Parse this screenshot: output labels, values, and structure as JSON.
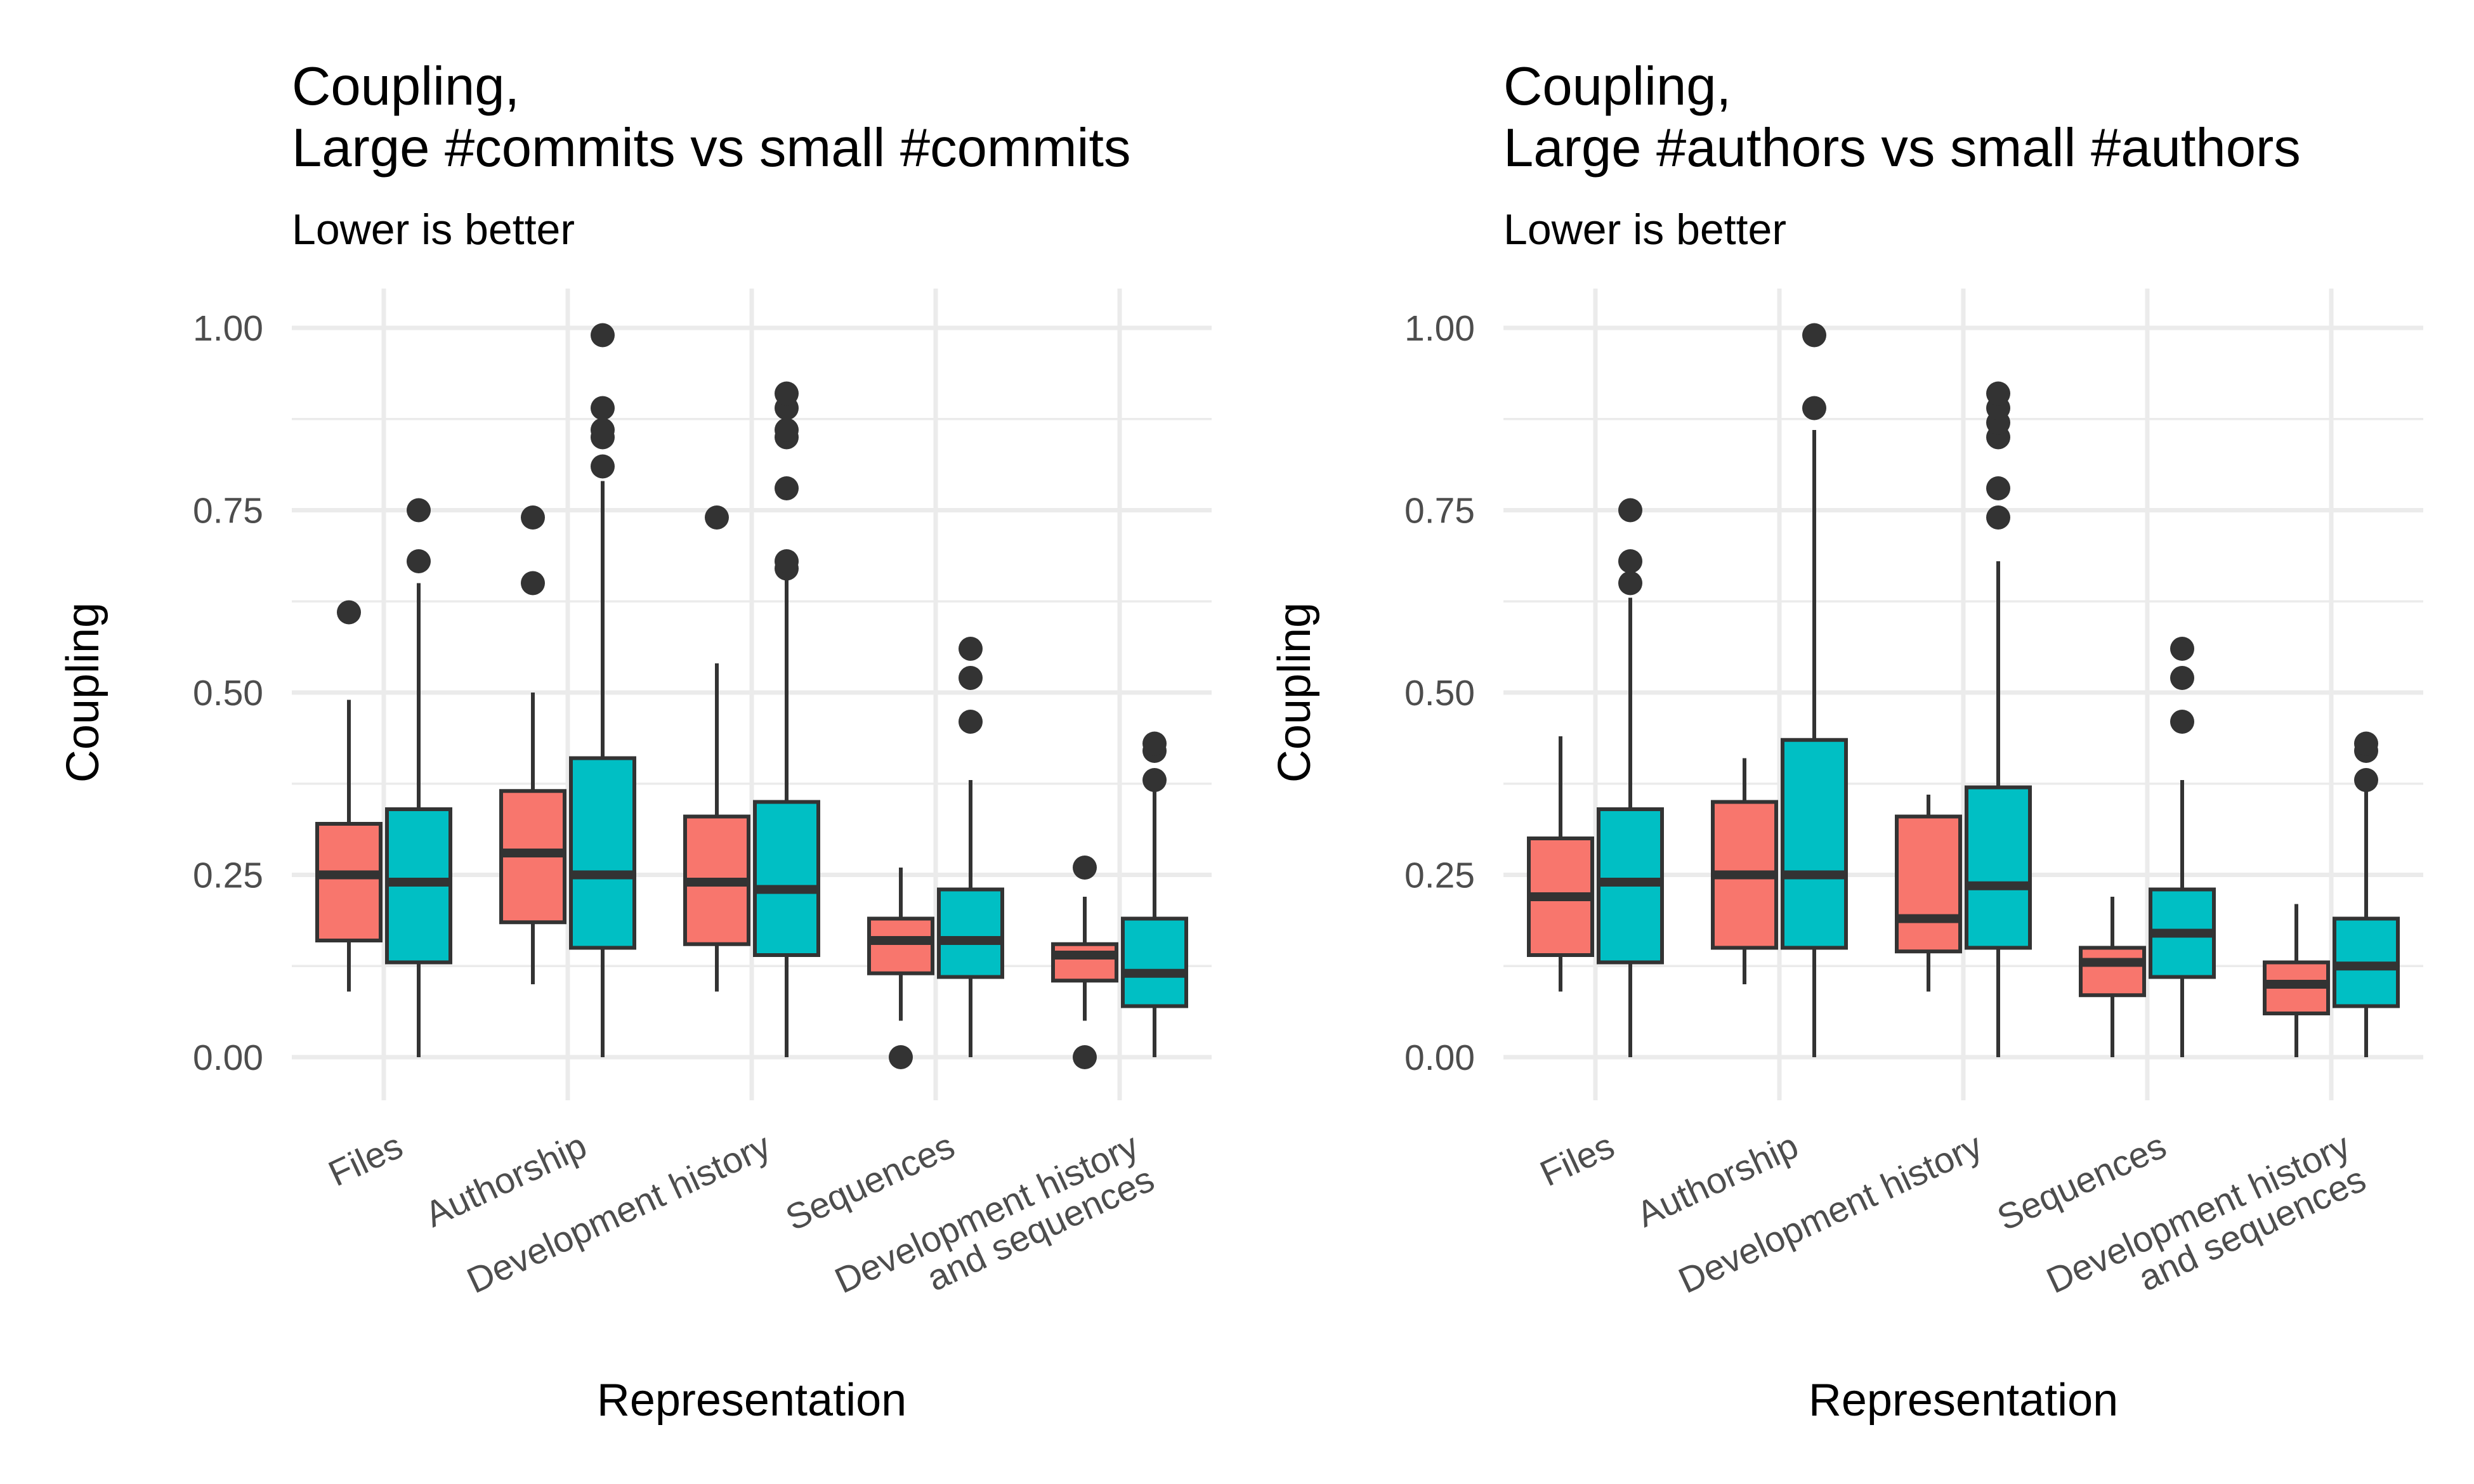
{
  "chart_data": [
    {
      "type": "boxplot",
      "title_line1": "Coupling,",
      "title_line2": "Large #commits vs small #commits",
      "subtitle": "Lower is better",
      "xlabel": "Representation",
      "ylabel": "Coupling",
      "ylim": [
        0,
        1
      ],
      "yticks": [
        "0.00",
        "0.25",
        "0.50",
        "0.75",
        "1.00"
      ],
      "categories": [
        {
          "lines": [
            "Files"
          ]
        },
        {
          "lines": [
            "Authorship"
          ]
        },
        {
          "lines": [
            "Development history"
          ]
        },
        {
          "lines": [
            "Sequences"
          ]
        },
        {
          "lines": [
            "Development history",
            "and sequences"
          ]
        }
      ],
      "series": [
        {
          "name": "large",
          "color": "#F8766D",
          "boxes": [
            {
              "wlo": 0.09,
              "q1": 0.16,
              "med": 0.25,
              "q3": 0.32,
              "whi": 0.49,
              "outliers": [
                0.61
              ]
            },
            {
              "wlo": 0.1,
              "q1": 0.185,
              "med": 0.28,
              "q3": 0.365,
              "whi": 0.5,
              "outliers": [
                0.65,
                0.74
              ]
            },
            {
              "wlo": 0.09,
              "q1": 0.155,
              "med": 0.24,
              "q3": 0.33,
              "whi": 0.54,
              "outliers": [
                0.74
              ]
            },
            {
              "wlo": 0.05,
              "q1": 0.115,
              "med": 0.16,
              "q3": 0.19,
              "whi": 0.26,
              "outliers": [
                0.0
              ]
            },
            {
              "wlo": 0.05,
              "q1": 0.105,
              "med": 0.14,
              "q3": 0.155,
              "whi": 0.22,
              "outliers": [
                0.0,
                0.26
              ]
            }
          ]
        },
        {
          "name": "small",
          "color": "#00BFC4",
          "boxes": [
            {
              "wlo": 0.0,
              "q1": 0.13,
              "med": 0.24,
              "q3": 0.34,
              "whi": 0.65,
              "outliers": [
                0.68,
                0.75
              ]
            },
            {
              "wlo": 0.0,
              "q1": 0.15,
              "med": 0.25,
              "q3": 0.41,
              "whi": 0.79,
              "outliers": [
                0.81,
                0.85,
                0.86,
                0.89,
                0.99
              ]
            },
            {
              "wlo": 0.0,
              "q1": 0.14,
              "med": 0.23,
              "q3": 0.35,
              "whi": 0.67,
              "outliers": [
                0.67,
                0.68,
                0.78,
                0.85,
                0.86,
                0.89,
                0.91
              ]
            },
            {
              "wlo": 0.0,
              "q1": 0.11,
              "med": 0.16,
              "q3": 0.23,
              "whi": 0.38,
              "outliers": [
                0.46,
                0.52,
                0.56
              ]
            },
            {
              "wlo": 0.0,
              "q1": 0.07,
              "med": 0.115,
              "q3": 0.19,
              "whi": 0.37,
              "outliers": [
                0.38,
                0.42,
                0.43
              ]
            }
          ]
        }
      ]
    },
    {
      "type": "boxplot",
      "title_line1": "Coupling,",
      "title_line2": "Large #authors vs small #authors",
      "subtitle": "Lower is better",
      "xlabel": "Representation",
      "ylabel": "Coupling",
      "ylim": [
        0,
        1
      ],
      "yticks": [
        "0.00",
        "0.25",
        "0.50",
        "0.75",
        "1.00"
      ],
      "categories": [
        {
          "lines": [
            "Files"
          ]
        },
        {
          "lines": [
            "Authorship"
          ]
        },
        {
          "lines": [
            "Development history"
          ]
        },
        {
          "lines": [
            "Sequences"
          ]
        },
        {
          "lines": [
            "Development history",
            "and sequences"
          ]
        }
      ],
      "series": [
        {
          "name": "large",
          "color": "#F8766D",
          "boxes": [
            {
              "wlo": 0.09,
              "q1": 0.14,
              "med": 0.22,
              "q3": 0.3,
              "whi": 0.44,
              "outliers": []
            },
            {
              "wlo": 0.1,
              "q1": 0.15,
              "med": 0.25,
              "q3": 0.35,
              "whi": 0.41,
              "outliers": []
            },
            {
              "wlo": 0.09,
              "q1": 0.145,
              "med": 0.19,
              "q3": 0.33,
              "whi": 0.36,
              "outliers": []
            },
            {
              "wlo": 0.0,
              "q1": 0.085,
              "med": 0.13,
              "q3": 0.15,
              "whi": 0.22,
              "outliers": []
            },
            {
              "wlo": 0.0,
              "q1": 0.06,
              "med": 0.1,
              "q3": 0.13,
              "whi": 0.21,
              "outliers": []
            }
          ]
        },
        {
          "name": "small",
          "color": "#00BFC4",
          "boxes": [
            {
              "wlo": 0.0,
              "q1": 0.13,
              "med": 0.24,
              "q3": 0.34,
              "whi": 0.63,
              "outliers": [
                0.65,
                0.68,
                0.75
              ]
            },
            {
              "wlo": 0.0,
              "q1": 0.15,
              "med": 0.25,
              "q3": 0.435,
              "whi": 0.86,
              "outliers": [
                0.89,
                0.99
              ]
            },
            {
              "wlo": 0.0,
              "q1": 0.15,
              "med": 0.235,
              "q3": 0.37,
              "whi": 0.68,
              "outliers": [
                0.74,
                0.78,
                0.85,
                0.87,
                0.89,
                0.91
              ]
            },
            {
              "wlo": 0.0,
              "q1": 0.11,
              "med": 0.17,
              "q3": 0.23,
              "whi": 0.38,
              "outliers": [
                0.46,
                0.52,
                0.56
              ]
            },
            {
              "wlo": 0.0,
              "q1": 0.07,
              "med": 0.125,
              "q3": 0.19,
              "whi": 0.37,
              "outliers": [
                0.38,
                0.42,
                0.43
              ]
            }
          ]
        }
      ]
    }
  ]
}
